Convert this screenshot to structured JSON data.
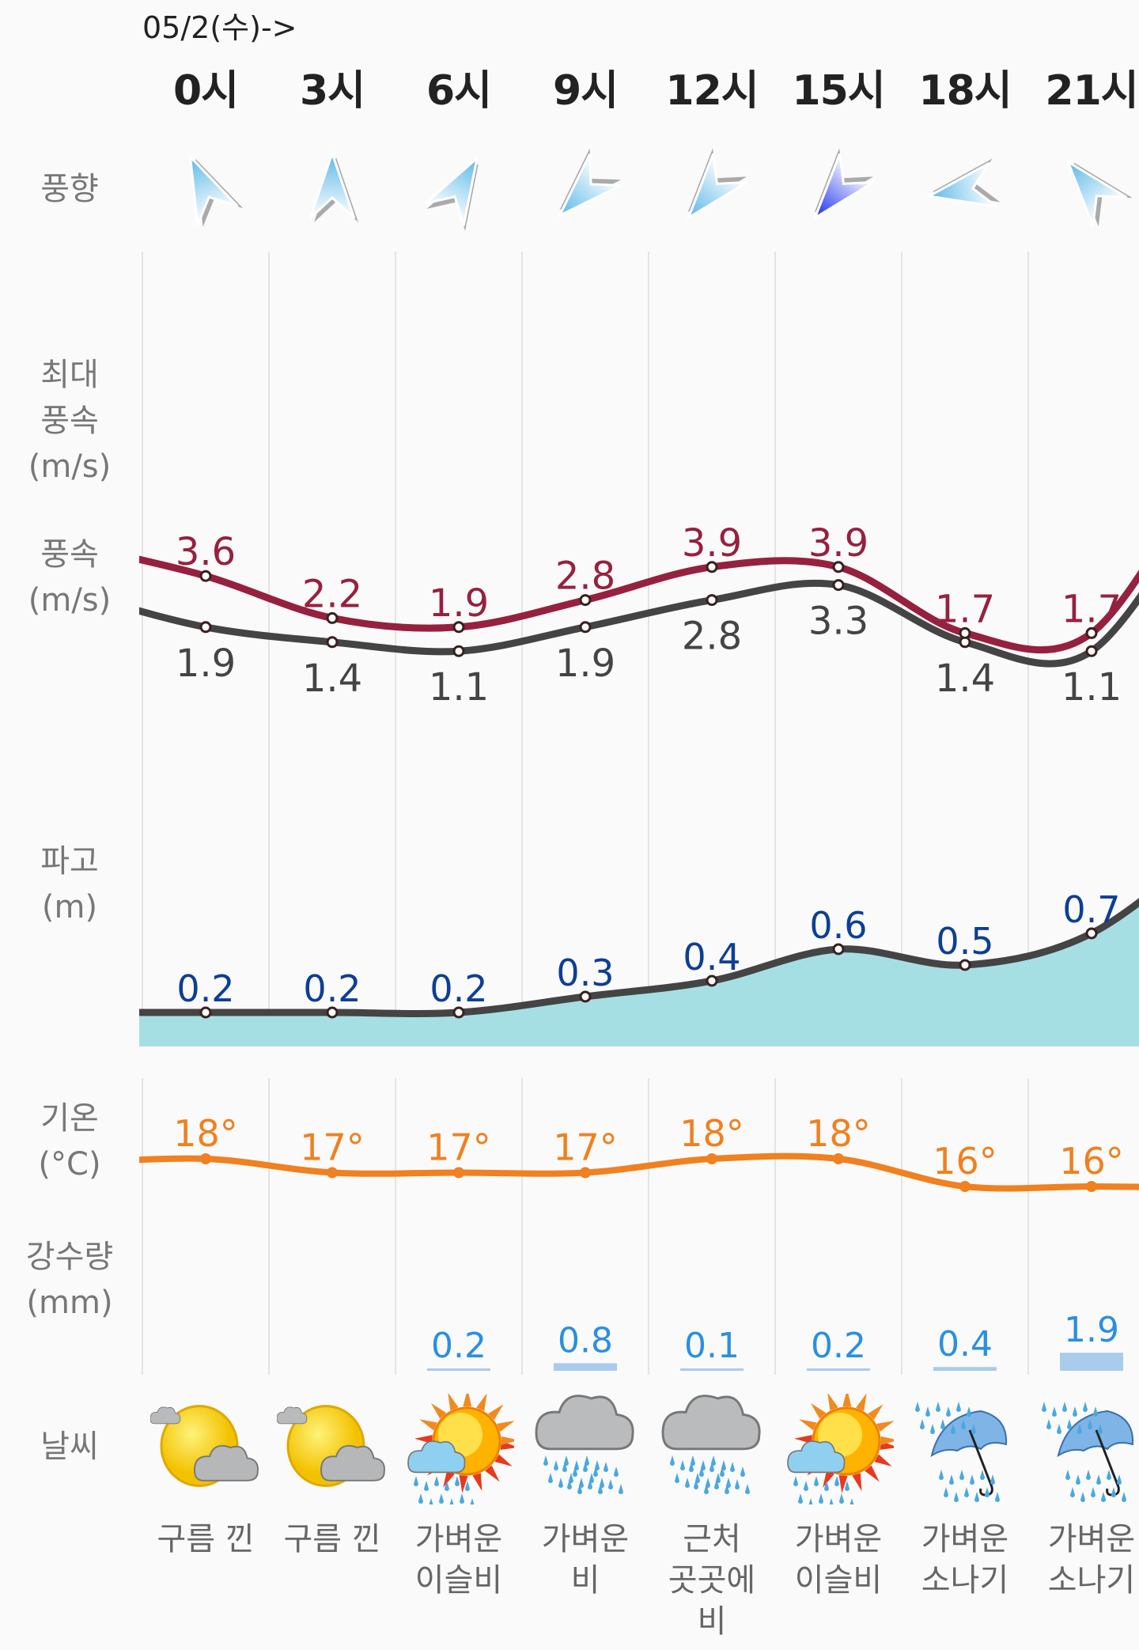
{
  "header": {
    "date_label": "05/2(수)->"
  },
  "hours": [
    "0시",
    "3시",
    "6시",
    "9시",
    "12시",
    "15시",
    "18시",
    "21시"
  ],
  "row_labels": {
    "wind_direction": "풍향",
    "max_wind": [
      "최대",
      "풍속",
      "(m/s)"
    ],
    "wind_speed": [
      "풍속",
      "(m/s)"
    ],
    "wave": [
      "파고",
      "(m)"
    ],
    "temp": [
      "기온",
      "(°C)"
    ],
    "precip": [
      "강수량",
      "(mm)"
    ],
    "weather": "날씨"
  },
  "wind_direction": [
    {
      "icon": "wind-arrow-icon",
      "angle_deg": -25,
      "color": "#5bb8e8"
    },
    {
      "icon": "wind-arrow-icon",
      "angle_deg": 0,
      "color": "#5bb8e8"
    },
    {
      "icon": "wind-arrow-icon",
      "angle_deg": 30,
      "color": "#5bb8e8"
    },
    {
      "icon": "wind-arrow-icon",
      "angle_deg": -135,
      "color": "#5bb8e8"
    },
    {
      "icon": "wind-arrow-icon",
      "angle_deg": -140,
      "color": "#5bb8e8"
    },
    {
      "icon": "wind-arrow-icon",
      "angle_deg": -140,
      "color": "#1a2ff0"
    },
    {
      "icon": "wind-arrow-icon",
      "angle_deg": -100,
      "color": "#5bb8e8"
    },
    {
      "icon": "wind-arrow-icon",
      "angle_deg": -40,
      "color": "#5bb8e8"
    }
  ],
  "weather": [
    {
      "icon": "partly-cloudy-icon",
      "text": "구름 낀"
    },
    {
      "icon": "partly-cloudy-icon",
      "text": "구름 낀"
    },
    {
      "icon": "sun-rain-icon",
      "text": "가벼운\n이슬비"
    },
    {
      "icon": "cloud-rain-icon",
      "text": "가벼운\n비"
    },
    {
      "icon": "cloud-rain-icon",
      "text": "근처\n곳곳에\n비"
    },
    {
      "icon": "sun-rain-icon",
      "text": "가벼운\n이슬비"
    },
    {
      "icon": "umbrella-rain-icon",
      "text": "가벼운\n소나기"
    },
    {
      "icon": "umbrella-rain-icon",
      "text": "가벼운\n소나기"
    }
  ],
  "colors": {
    "max_wind": "#96213f",
    "wind": "#444444",
    "wave_line": "#444444",
    "wave_fill": "#a6dfe3",
    "wave_label": "#0d3f94",
    "temp": "#f08020",
    "precip_label": "#2b8fe0",
    "precip_bar": "#a9cbec"
  },
  "chart_data": [
    {
      "type": "line",
      "title": "최대풍속 / 풍속 (m/s)",
      "categories": [
        "0시",
        "3시",
        "6시",
        "9시",
        "12시",
        "15시",
        "18시",
        "21시"
      ],
      "series": [
        {
          "name": "최대풍속",
          "values": [
            3.6,
            2.2,
            1.9,
            2.8,
            3.9,
            3.9,
            1.7,
            1.7
          ]
        },
        {
          "name": "풍속",
          "values": [
            1.9,
            1.4,
            1.1,
            1.9,
            2.8,
            3.3,
            1.4,
            1.1
          ]
        }
      ]
    },
    {
      "type": "area",
      "title": "파고 (m)",
      "categories": [
        "0시",
        "3시",
        "6시",
        "9시",
        "12시",
        "15시",
        "18시",
        "21시"
      ],
      "values": [
        0.2,
        0.2,
        0.2,
        0.3,
        0.4,
        0.6,
        0.5,
        0.7
      ]
    },
    {
      "type": "line",
      "title": "기온 (°C)",
      "categories": [
        "0시",
        "3시",
        "6시",
        "9시",
        "12시",
        "15시",
        "18시",
        "21시"
      ],
      "values": [
        18,
        17,
        17,
        17,
        18,
        18,
        16,
        16
      ],
      "value_suffix": "°"
    },
    {
      "type": "bar",
      "title": "강수량 (mm)",
      "categories": [
        "0시",
        "3시",
        "6시",
        "9시",
        "12시",
        "15시",
        "18시",
        "21시"
      ],
      "values": [
        null,
        null,
        0.2,
        0.8,
        0.1,
        0.2,
        0.4,
        1.9
      ]
    }
  ]
}
